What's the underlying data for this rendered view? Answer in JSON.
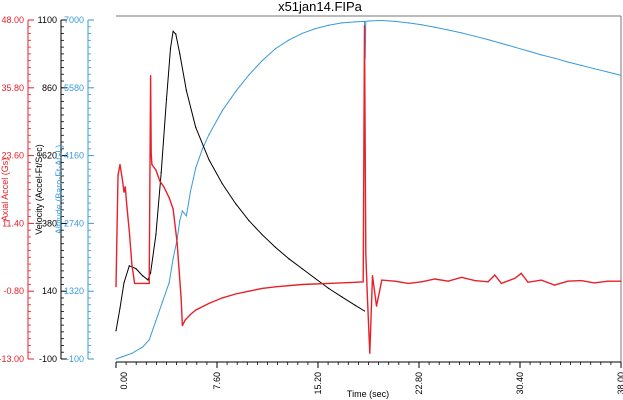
{
  "chart_data": {
    "type": "line",
    "title": "x51jan14.FIPa",
    "xlabel": "Time (sec)",
    "xlim": [
      0,
      38
    ],
    "x_ticks": [
      "0.00",
      "7.60",
      "15.20",
      "22.80",
      "30.40",
      "38.00"
    ],
    "grid": false,
    "axes": [
      {
        "id": "accel",
        "label": "Axial Accel (Gs)",
        "color": "#e8202a",
        "ylim": [
          -13,
          48
        ],
        "ticks": [
          "-13.00",
          "-0.80",
          "11.40",
          "23.60",
          "35.80",
          "48.00"
        ]
      },
      {
        "id": "velocity",
        "label": "Velocity (Accel-Ft/Sec)",
        "color": "#000000",
        "ylim": [
          -100,
          1100
        ],
        "ticks": [
          "-100",
          "140",
          "380",
          "620",
          "860",
          "1100"
        ]
      },
      {
        "id": "altitude",
        "label": "Altitude (Baro-Ft-AGL)",
        "color": "#3a9ad9",
        "ylim": [
          -100,
          7000
        ],
        "ticks": [
          "-100",
          "1320",
          "2740",
          "4160",
          "5580",
          "7000"
        ]
      }
    ],
    "series": [
      {
        "axis": "altitude",
        "color": "#3a9ad9",
        "points": [
          [
            0,
            -100
          ],
          [
            0.5,
            -50
          ],
          [
            1.2,
            20
          ],
          [
            2.0,
            150
          ],
          [
            2.5,
            300
          ],
          [
            3.0,
            700
          ],
          [
            3.5,
            1100
          ],
          [
            4.0,
            1500
          ],
          [
            4.3,
            2000
          ],
          [
            4.6,
            2400
          ],
          [
            4.8,
            2800
          ],
          [
            5.0,
            3000
          ],
          [
            5.3,
            2900
          ],
          [
            5.6,
            3400
          ],
          [
            6.0,
            3900
          ],
          [
            6.5,
            4300
          ],
          [
            7.0,
            4600
          ],
          [
            8.0,
            5100
          ],
          [
            9.0,
            5500
          ],
          [
            10.0,
            5850
          ],
          [
            11.0,
            6150
          ],
          [
            12.0,
            6400
          ],
          [
            13.0,
            6580
          ],
          [
            14.0,
            6720
          ],
          [
            15.0,
            6820
          ],
          [
            16.0,
            6890
          ],
          [
            17.0,
            6940
          ],
          [
            18.0,
            6960
          ],
          [
            18.7,
            6970
          ],
          [
            18.75,
            6200
          ],
          [
            18.8,
            6970
          ],
          [
            19.0,
            6980
          ],
          [
            20.0,
            6990
          ],
          [
            21.0,
            6970
          ],
          [
            22.0,
            6940
          ],
          [
            23.0,
            6900
          ],
          [
            24.0,
            6850
          ],
          [
            25.0,
            6790
          ],
          [
            26.0,
            6730
          ],
          [
            27.0,
            6660
          ],
          [
            28.0,
            6590
          ],
          [
            29.0,
            6510
          ],
          [
            30.0,
            6430
          ],
          [
            31.0,
            6350
          ],
          [
            32.0,
            6270
          ],
          [
            33.0,
            6200
          ],
          [
            34.0,
            6120
          ],
          [
            35.0,
            6050
          ],
          [
            36.0,
            5980
          ],
          [
            37.0,
            5910
          ],
          [
            38.0,
            5840
          ]
        ]
      },
      {
        "axis": "velocity",
        "color": "#000000",
        "points": [
          [
            0,
            0
          ],
          [
            0.3,
            80
          ],
          [
            0.6,
            170
          ],
          [
            1.0,
            230
          ],
          [
            1.5,
            220
          ],
          [
            2.0,
            195
          ],
          [
            2.4,
            180
          ],
          [
            2.6,
            205
          ],
          [
            3.0,
            340
          ],
          [
            3.4,
            560
          ],
          [
            3.8,
            820
          ],
          [
            4.1,
            1000
          ],
          [
            4.3,
            1060
          ],
          [
            4.5,
            1050
          ],
          [
            4.8,
            980
          ],
          [
            5.3,
            850
          ],
          [
            6.0,
            720
          ],
          [
            7.0,
            605
          ],
          [
            8.0,
            520
          ],
          [
            9.0,
            450
          ],
          [
            10.0,
            390
          ],
          [
            11.0,
            340
          ],
          [
            12.0,
            295
          ],
          [
            13.0,
            255
          ],
          [
            14.0,
            220
          ],
          [
            15.0,
            185
          ],
          [
            16.0,
            150
          ],
          [
            17.0,
            120
          ],
          [
            18.0,
            90
          ],
          [
            18.7,
            70
          ]
        ]
      },
      {
        "axis": "accel",
        "color": "#e8202a",
        "points": [
          [
            0,
            0
          ],
          [
            0.15,
            20
          ],
          [
            0.3,
            22
          ],
          [
            0.5,
            19
          ],
          [
            0.6,
            17
          ],
          [
            0.7,
            18
          ],
          [
            0.8,
            15
          ],
          [
            1.0,
            10
          ],
          [
            1.2,
            4
          ],
          [
            1.4,
            0.6
          ],
          [
            1.6,
            0.6
          ],
          [
            2.0,
            0.6
          ],
          [
            2.3,
            0.6
          ],
          [
            2.5,
            0.6
          ],
          [
            2.6,
            38
          ],
          [
            2.65,
            24
          ],
          [
            2.7,
            22
          ],
          [
            3.0,
            21
          ],
          [
            3.3,
            19
          ],
          [
            3.6,
            18
          ],
          [
            4.0,
            16
          ],
          [
            4.3,
            14
          ],
          [
            4.6,
            8
          ],
          [
            4.9,
            -2
          ],
          [
            5.0,
            -7
          ],
          [
            5.2,
            -6
          ],
          [
            5.6,
            -5
          ],
          [
            6.0,
            -4.2
          ],
          [
            7.0,
            -3.0
          ],
          [
            8.0,
            -2.0
          ],
          [
            9.0,
            -1.3
          ],
          [
            10.0,
            -0.8
          ],
          [
            11.0,
            -0.3
          ],
          [
            12.0,
            0
          ],
          [
            14.0,
            0.4
          ],
          [
            16.0,
            0.6
          ],
          [
            18.0,
            0.8
          ],
          [
            18.6,
            0.9
          ],
          [
            18.7,
            47
          ],
          [
            18.8,
            6
          ],
          [
            18.9,
            -1
          ],
          [
            19.1,
            -12
          ],
          [
            19.3,
            2
          ],
          [
            19.6,
            -3.5
          ],
          [
            20.0,
            1.2
          ],
          [
            21.0,
            1.0
          ],
          [
            22.0,
            0.6
          ],
          [
            23.0,
            0.9
          ],
          [
            24.0,
            1.4
          ],
          [
            25.0,
            1.0
          ],
          [
            26.0,
            1.7
          ],
          [
            27.0,
            1.1
          ],
          [
            28.0,
            0.9
          ],
          [
            28.5,
            2.1
          ],
          [
            29.0,
            0.6
          ],
          [
            30.0,
            1.5
          ],
          [
            30.5,
            2.4
          ],
          [
            31.0,
            0.8
          ],
          [
            32.0,
            1.2
          ],
          [
            33.0,
            0.3
          ],
          [
            34.0,
            1.0
          ],
          [
            35.0,
            1.1
          ],
          [
            36.0,
            0.7
          ],
          [
            37.0,
            1.0
          ],
          [
            38.0,
            1.0
          ]
        ]
      }
    ]
  }
}
